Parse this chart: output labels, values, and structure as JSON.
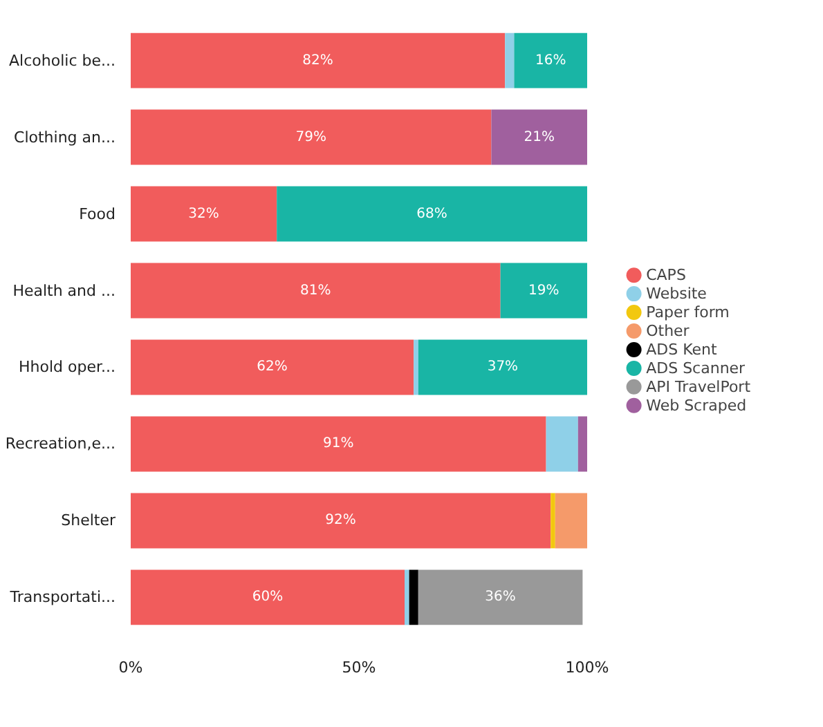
{
  "chart_data": {
    "type": "bar",
    "orientation": "horizontal",
    "stacked": true,
    "categories": [
      "Alcoholic be...",
      "Clothing an...",
      "Food",
      "Health and ...",
      "Hhold oper...",
      "Recreation,e...",
      "Shelter",
      "Transportati..."
    ],
    "series": [
      {
        "name": "CAPS",
        "color": "#f15c5c",
        "values": [
          82,
          79,
          32,
          81,
          62,
          91,
          92,
          60
        ],
        "value_labels": [
          "82%",
          "79%",
          "32%",
          "81%",
          "62%",
          "91%",
          "92%",
          "60%"
        ]
      },
      {
        "name": "Website",
        "color": "#8fd0e8",
        "values": [
          2,
          null,
          null,
          null,
          1,
          7,
          null,
          1
        ],
        "value_labels": [
          null,
          null,
          null,
          null,
          null,
          null,
          null,
          null
        ]
      },
      {
        "name": "Paper form",
        "color": "#f2c80f",
        "values": [
          null,
          null,
          null,
          null,
          null,
          null,
          1,
          null
        ],
        "value_labels": [
          null,
          null,
          null,
          null,
          null,
          null,
          null,
          null
        ]
      },
      {
        "name": "Other",
        "color": "#f59a6a",
        "values": [
          null,
          null,
          null,
          null,
          null,
          null,
          7,
          null
        ],
        "value_labels": [
          null,
          null,
          null,
          null,
          null,
          null,
          null,
          null
        ]
      },
      {
        "name": "ADS Kent",
        "color": "#000000",
        "values": [
          null,
          null,
          null,
          null,
          null,
          null,
          null,
          2
        ],
        "value_labels": [
          null,
          null,
          null,
          null,
          null,
          null,
          null,
          null
        ]
      },
      {
        "name": "ADS Scanner",
        "color": "#19b5a5",
        "values": [
          16,
          null,
          68,
          19,
          37,
          null,
          null,
          null
        ],
        "value_labels": [
          "16%",
          null,
          "68%",
          "19%",
          "37%",
          null,
          null,
          null
        ]
      },
      {
        "name": "API TravelPort",
        "color": "#999999",
        "values": [
          null,
          null,
          null,
          null,
          null,
          null,
          null,
          36
        ],
        "value_labels": [
          null,
          null,
          null,
          null,
          null,
          null,
          null,
          "36%"
        ]
      },
      {
        "name": "Web Scraped",
        "color": "#a0609e",
        "values": [
          null,
          21,
          null,
          null,
          null,
          2,
          null,
          null
        ],
        "value_labels": [
          null,
          "21%",
          null,
          null,
          null,
          null,
          null,
          null
        ]
      }
    ],
    "xlim": [
      0,
      100
    ],
    "xticks": [
      {
        "value": 0,
        "label": "0%"
      },
      {
        "value": 50,
        "label": "50%"
      },
      {
        "value": 100,
        "label": "100%"
      }
    ],
    "grid": false,
    "legend": "right"
  }
}
